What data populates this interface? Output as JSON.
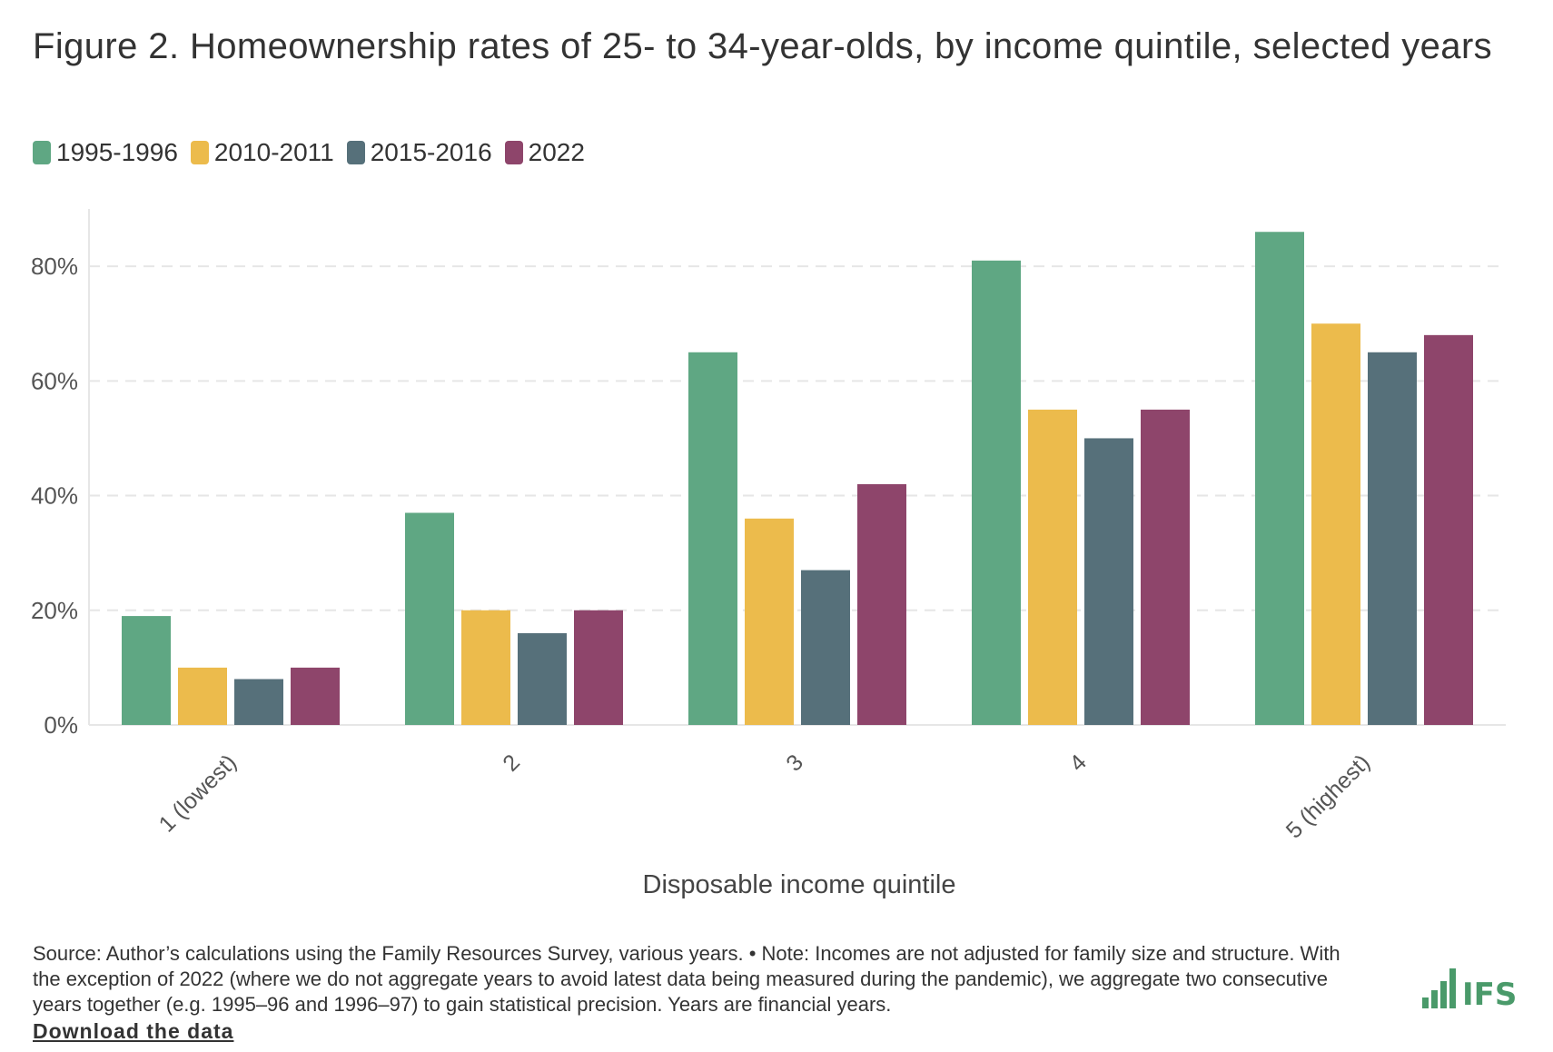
{
  "title": "Figure 2. Homeownership rates of 25- to 34-year-olds, by income quintile, selected years",
  "footnote": "Source: Author’s calculations using the Family Resources Survey, various years. • Note: Incomes are not adjusted for family size and structure. With the exception of 2022 (where we do not aggregate years to avoid latest data being measured during the pandemic), we aggregate two consecutive years together (e.g. 1995–96 and 1996–97) to gain statistical precision. Years are financial years.",
  "download_label": "Download the data",
  "logo_text": "IFS",
  "chart_data": {
    "type": "bar",
    "title": "Figure 2. Homeownership rates of 25- to 34-year-olds, by income quintile, selected years",
    "xlabel": "Disposable income quintile",
    "ylabel": "",
    "categories": [
      "1 (lowest)",
      "2",
      "3",
      "4",
      "5 (highest)"
    ],
    "ylim": [
      0,
      90
    ],
    "yticks": [
      0,
      20,
      40,
      60,
      80
    ],
    "ytick_labels": [
      "0%",
      "20%",
      "40%",
      "60%",
      "80%"
    ],
    "grid": true,
    "legend_position": "top-left",
    "series": [
      {
        "name": "1995-1996",
        "color": "#5fa783",
        "values": [
          19,
          37,
          65,
          81,
          86
        ]
      },
      {
        "name": "2010-2011",
        "color": "#ecbb4c",
        "values": [
          10,
          20,
          36,
          55,
          70
        ]
      },
      {
        "name": "2015-2016",
        "color": "#56707a",
        "values": [
          8,
          16,
          27,
          50,
          65
        ]
      },
      {
        "name": "2022",
        "color": "#8e456b",
        "values": [
          10,
          20,
          42,
          55,
          68
        ]
      }
    ]
  }
}
